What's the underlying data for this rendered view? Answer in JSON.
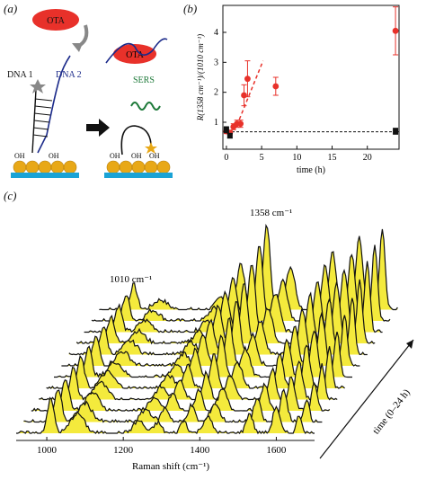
{
  "panel_a": {
    "label": "(a)",
    "ota": "OTA",
    "dna1": "DNA 1",
    "dna2": "DNA 2",
    "sers": "SERS",
    "oh": "OH"
  },
  "panel_b": {
    "label": "(b)",
    "xlabel": "time (h)",
    "ylabel": "R(1358 cm⁻¹)/(1010 cm⁻¹)",
    "xticks": [
      "0",
      "5",
      "10",
      "15",
      "20"
    ],
    "yticks": [
      "1",
      "2",
      "3",
      "4"
    ]
  },
  "panel_c": {
    "label": "(c)",
    "peak_1358": "1358 cm⁻¹",
    "peak_1010": "1010 cm⁻¹",
    "xlabel": "Raman shift (cm⁻¹)",
    "xticks": [
      "1000",
      "1200",
      "1400",
      "1600"
    ],
    "time_axis": "time (0–24 h)"
  },
  "colors": {
    "red": "#e8312a",
    "yellow": "#f4ea3c",
    "blue": "#1aa3d6",
    "gold": "#e8a817",
    "navy": "#1b2a8a",
    "green": "#1e7a3a"
  },
  "chart_data": [
    {
      "type": "scatter",
      "panel": "b",
      "xlabel": "time (h)",
      "ylabel": "R(1358 cm⁻¹)/(1010 cm⁻¹)",
      "xlim": [
        -0.5,
        24.5
      ],
      "ylim": [
        0.1,
        4.9
      ],
      "series": [
        {
          "color": "#e8312a",
          "x": [
            0,
            0.5,
            1,
            1.5,
            2,
            2.5,
            3,
            7,
            24
          ],
          "y": [
            0.7,
            0.65,
            0.85,
            0.95,
            0.95,
            1.9,
            2.45,
            2.2,
            4.05
          ],
          "err": [
            0.08,
            0.07,
            0.1,
            0.12,
            0.12,
            0.35,
            0.6,
            0.3,
            0.8
          ]
        },
        {
          "color": "#111111",
          "x": [
            0,
            0.5,
            24
          ],
          "y": [
            0.75,
            0.55,
            0.7
          ],
          "err": [
            0.1,
            0.08,
            0.1
          ]
        }
      ],
      "fit_line": {
        "color": "#e8312a",
        "style": "dashed",
        "x": [
          1.5,
          5.2
        ],
        "y": [
          0.9,
          3.05
        ]
      },
      "baseline": {
        "style": "dashed",
        "y": 0.68
      }
    },
    {
      "type": "line",
      "panel": "c",
      "xlabel": "Raman shift (cm⁻¹)",
      "xlim": [
        920,
        1700
      ],
      "spectra_count": 12,
      "peaks": [
        1010,
        1358,
        1290,
        1240,
        1530,
        1600,
        1660
      ]
    }
  ]
}
